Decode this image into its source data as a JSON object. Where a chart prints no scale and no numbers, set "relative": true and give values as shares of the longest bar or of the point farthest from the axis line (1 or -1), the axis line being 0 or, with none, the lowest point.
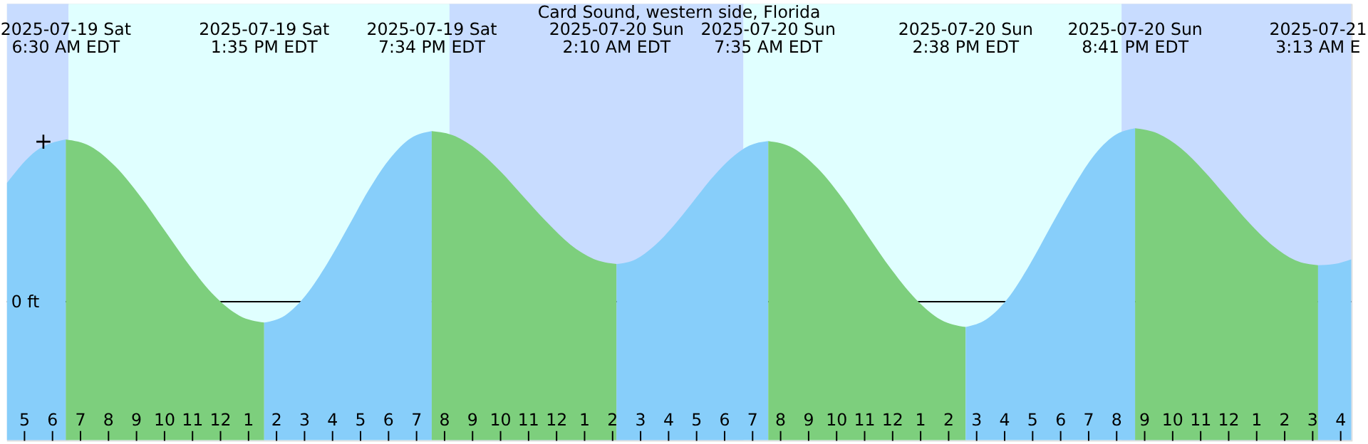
{
  "chart_data": {
    "type": "area",
    "title": "Card Sound, western side, Florida",
    "relative": true,
    "xlim": [
      "2025-07-19T04:24",
      "2025-07-21T04:24"
    ],
    "xticks": [
      {
        "value": "2025-07-19T05:00",
        "label": "5"
      },
      {
        "value": "2025-07-19T06:00",
        "label": "6"
      },
      {
        "value": "2025-07-19T07:00",
        "label": "7"
      },
      {
        "value": "2025-07-19T08:00",
        "label": "8"
      },
      {
        "value": "2025-07-19T09:00",
        "label": "9"
      },
      {
        "value": "2025-07-19T10:00",
        "label": "10"
      },
      {
        "value": "2025-07-19T11:00",
        "label": "11"
      },
      {
        "value": "2025-07-19T12:00",
        "label": "12"
      },
      {
        "value": "2025-07-19T13:00",
        "label": "1"
      },
      {
        "value": "2025-07-19T14:00",
        "label": "2"
      },
      {
        "value": "2025-07-19T15:00",
        "label": "3"
      },
      {
        "value": "2025-07-19T16:00",
        "label": "4"
      },
      {
        "value": "2025-07-19T17:00",
        "label": "5"
      },
      {
        "value": "2025-07-19T18:00",
        "label": "6"
      },
      {
        "value": "2025-07-19T19:00",
        "label": "7"
      },
      {
        "value": "2025-07-19T20:00",
        "label": "8"
      },
      {
        "value": "2025-07-19T21:00",
        "label": "9"
      },
      {
        "value": "2025-07-19T22:00",
        "label": "10"
      },
      {
        "value": "2025-07-19T23:00",
        "label": "11"
      },
      {
        "value": "2025-07-20T00:00",
        "label": "12"
      },
      {
        "value": "2025-07-20T01:00",
        "label": "1"
      },
      {
        "value": "2025-07-20T02:00",
        "label": "2"
      },
      {
        "value": "2025-07-20T03:00",
        "label": "3"
      },
      {
        "value": "2025-07-20T04:00",
        "label": "4"
      },
      {
        "value": "2025-07-20T05:00",
        "label": "5"
      },
      {
        "value": "2025-07-20T06:00",
        "label": "6"
      },
      {
        "value": "2025-07-20T07:00",
        "label": "7"
      },
      {
        "value": "2025-07-20T08:00",
        "label": "8"
      },
      {
        "value": "2025-07-20T09:00",
        "label": "9"
      },
      {
        "value": "2025-07-20T10:00",
        "label": "10"
      },
      {
        "value": "2025-07-20T11:00",
        "label": "11"
      },
      {
        "value": "2025-07-20T12:00",
        "label": "12"
      },
      {
        "value": "2025-07-20T13:00",
        "label": "1"
      },
      {
        "value": "2025-07-20T14:00",
        "label": "2"
      },
      {
        "value": "2025-07-20T15:00",
        "label": "3"
      },
      {
        "value": "2025-07-20T16:00",
        "label": "4"
      },
      {
        "value": "2025-07-20T17:00",
        "label": "5"
      },
      {
        "value": "2025-07-20T18:00",
        "label": "6"
      },
      {
        "value": "2025-07-20T19:00",
        "label": "7"
      },
      {
        "value": "2025-07-20T20:00",
        "label": "8"
      },
      {
        "value": "2025-07-20T21:00",
        "label": "9"
      },
      {
        "value": "2025-07-20T22:00",
        "label": "10"
      },
      {
        "value": "2025-07-20T23:00",
        "label": "11"
      },
      {
        "value": "2025-07-21T00:00",
        "label": "12"
      },
      {
        "value": "2025-07-21T01:00",
        "label": "1"
      },
      {
        "value": "2025-07-21T02:00",
        "label": "2"
      },
      {
        "value": "2025-07-21T03:00",
        "label": "3"
      },
      {
        "value": "2025-07-21T04:00",
        "label": "4"
      }
    ],
    "bands": [
      {
        "axis": "x",
        "from": "2025-07-19T04:24",
        "to": "2025-07-19T06:36",
        "color": "#c8dcff"
      },
      {
        "axis": "x",
        "from": "2025-07-19T06:36",
        "to": "2025-07-19T20:12",
        "color": "#e0ffff"
      },
      {
        "axis": "x",
        "from": "2025-07-19T20:12",
        "to": "2025-07-20T06:42",
        "color": "#c8dcff"
      },
      {
        "axis": "x",
        "from": "2025-07-20T06:42",
        "to": "2025-07-20T20:12",
        "color": "#e0ffff"
      },
      {
        "axis": "x",
        "from": "2025-07-20T20:12",
        "to": "2025-07-21T04:24",
        "color": "#c8dcff"
      }
    ],
    "ref_lines": [
      {
        "axis": "y",
        "value": 0.444,
        "label": "0 ft",
        "color": "#000000"
      }
    ],
    "series": [
      {
        "color": "#87cefa",
        "x": [
          "2025-07-19T04:24",
          "2025-07-19T05:27",
          "2025-07-19T06:30"
        ],
        "values": [
          0.825,
          0.928,
          0.964
        ]
      },
      {
        "color": "#7dcf7d",
        "x": [
          "2025-07-19T06:30",
          "2025-07-19T07:23",
          "2025-07-19T08:16",
          "2025-07-19T09:09",
          "2025-07-19T10:03",
          "2025-07-19T10:56",
          "2025-07-19T11:49",
          "2025-07-19T12:42",
          "2025-07-19T13:35"
        ],
        "values": [
          0.964,
          0.942,
          0.878,
          0.783,
          0.67,
          0.558,
          0.462,
          0.399,
          0.377
        ]
      },
      {
        "color": "#87cefa",
        "x": [
          "2025-07-19T13:35",
          "2025-07-19T14:20",
          "2025-07-19T15:05",
          "2025-07-19T15:50",
          "2025-07-19T16:35",
          "2025-07-19T17:19",
          "2025-07-19T18:04",
          "2025-07-19T18:49",
          "2025-07-19T19:34"
        ],
        "values": [
          0.377,
          0.4,
          0.466,
          0.566,
          0.684,
          0.802,
          0.902,
          0.968,
          0.991
        ]
      },
      {
        "color": "#7dcf7d",
        "x": [
          "2025-07-19T19:34",
          "2025-07-19T20:24",
          "2025-07-19T21:13",
          "2025-07-19T22:03",
          "2025-07-19T22:52",
          "2025-07-19T23:42",
          "2025-07-20T00:31",
          "2025-07-20T01:21",
          "2025-07-20T02:10"
        ],
        "values": [
          0.991,
          0.975,
          0.929,
          0.859,
          0.778,
          0.697,
          0.627,
          0.581,
          0.565
        ]
      },
      {
        "color": "#87cefa",
        "x": [
          "2025-07-20T02:10",
          "2025-07-20T02:51",
          "2025-07-20T03:31",
          "2025-07-20T04:12",
          "2025-07-20T04:53",
          "2025-07-20T05:33",
          "2025-07-20T06:14",
          "2025-07-20T06:54",
          "2025-07-20T07:35"
        ],
        "values": [
          0.565,
          0.58,
          0.623,
          0.687,
          0.763,
          0.838,
          0.902,
          0.944,
          0.959
        ]
      },
      {
        "color": "#7dcf7d",
        "x": [
          "2025-07-20T07:35",
          "2025-07-20T08:28",
          "2025-07-20T09:21",
          "2025-07-20T10:14",
          "2025-07-20T11:06",
          "2025-07-20T11:59",
          "2025-07-20T12:52",
          "2025-07-20T13:45",
          "2025-07-20T14:38"
        ],
        "values": [
          0.959,
          0.937,
          0.872,
          0.775,
          0.661,
          0.547,
          0.451,
          0.386,
          0.363
        ]
      },
      {
        "color": "#87cefa",
        "x": [
          "2025-07-20T14:38",
          "2025-07-20T15:23",
          "2025-07-20T16:09",
          "2025-07-20T16:54",
          "2025-07-20T17:39",
          "2025-07-20T18:25",
          "2025-07-20T19:10",
          "2025-07-20T19:56",
          "2025-07-20T20:41"
        ],
        "values": [
          0.363,
          0.388,
          0.456,
          0.56,
          0.682,
          0.803,
          0.907,
          0.976,
          1.0
        ]
      },
      {
        "color": "#7dcf7d",
        "x": [
          "2025-07-20T20:41",
          "2025-07-20T21:30",
          "2025-07-20T22:19",
          "2025-07-20T23:08",
          "2025-07-20T23:57",
          "2025-07-21T00:46",
          "2025-07-21T01:35",
          "2025-07-21T02:24",
          "2025-07-21T03:13"
        ],
        "values": [
          1.0,
          0.983,
          0.936,
          0.864,
          0.78,
          0.696,
          0.625,
          0.577,
          0.561
        ]
      },
      {
        "color": "#87cefa",
        "x": [
          "2025-07-21T03:13",
          "2025-07-21T03:48",
          "2025-07-21T04:24"
        ],
        "values": [
          0.561,
          0.565,
          0.58
        ]
      }
    ],
    "annotations": [
      "2025-07-19 Sat\n6:30 AM EDT",
      "2025-07-19 Sat\n1:35 PM EDT",
      "2025-07-19 Sat\n7:34 PM EDT",
      "2025-07-20 Sun\n2:10 AM EDT",
      "2025-07-20 Sun\n7:35 AM EDT",
      "2025-07-20 Sun\n2:38 PM EDT",
      "2025-07-20 Sun\n8:41 PM EDT",
      "2025-07-21\n3:13 AM E",
      {
        "text": "+",
        "x": "2025-07-19T05:42",
        "y": 0.956
      }
    ]
  }
}
